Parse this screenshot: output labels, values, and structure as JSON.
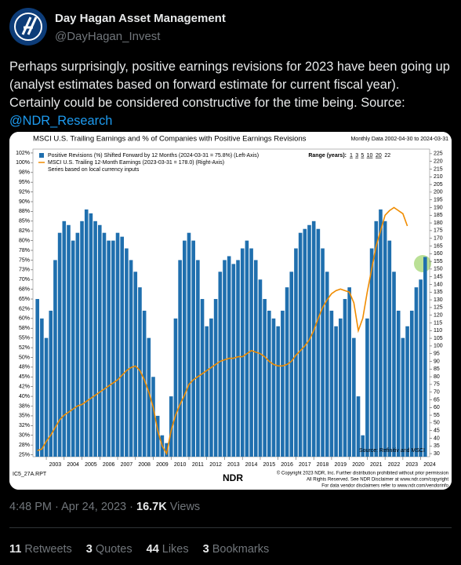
{
  "tweet": {
    "author_name": "Day Hagan Asset Management",
    "handle": "@DayHagan_Invest",
    "text": "Perhaps surprisingly, positive earnings revisions for 2023 have been going up (analyst estimates based on forward estimate for current fiscal year). Certainly could be considered constructive for the time being. Source:",
    "link": "@NDR_Research",
    "timestamp": "4:48 PM · Apr 24, 2023 · ",
    "views": "16.7K",
    "views_label": "Views",
    "stats": [
      {
        "count": 11,
        "label": "Retweets"
      },
      {
        "count": 3,
        "label": "Quotes"
      },
      {
        "count": 44,
        "label": "Likes"
      },
      {
        "count": 3,
        "label": "Bookmarks"
      }
    ]
  },
  "chart_data": {
    "type": "bar-line",
    "title": "MSCI U.S. Trailing Earnings and % of Companies with Positive Earnings Revisions",
    "subtitle": "Monthly Data 2002-04-30 to 2024-03-31",
    "range_label": "Range (years):",
    "range_options": [
      1,
      3,
      5,
      10,
      20,
      22
    ],
    "note": "Series based on local currency inputs",
    "source": "Source: Refinitiv and MSCI",
    "report_id": "IC5_27A.RPT",
    "logo": "NDR",
    "copyright": [
      "© Copyright 2023 NDR, Inc. Further distribution prohibited without prior permission",
      "All Rights Reserved. See NDR Disclaimer at www.ndr.com/copyright",
      "For data vendor disclaimers refer to www.ndr.com/vendorinfo"
    ],
    "x": [
      2002.5,
      2002.75,
      2003,
      2003.25,
      2003.5,
      2003.75,
      2004,
      2004.25,
      2004.5,
      2004.75,
      2005,
      2005.25,
      2005.5,
      2005.75,
      2006,
      2006.25,
      2006.5,
      2006.75,
      2007,
      2007.25,
      2007.5,
      2007.75,
      2008,
      2008.25,
      2008.5,
      2008.75,
      2009,
      2009.25,
      2009.5,
      2009.75,
      2010,
      2010.25,
      2010.5,
      2010.75,
      2011,
      2011.25,
      2011.5,
      2011.75,
      2012,
      2012.25,
      2012.5,
      2012.75,
      2013,
      2013.25,
      2013.5,
      2013.75,
      2014,
      2014.25,
      2014.5,
      2014.75,
      2015,
      2015.25,
      2015.5,
      2015.75,
      2016,
      2016.25,
      2016.5,
      2016.75,
      2017,
      2017.25,
      2017.5,
      2017.75,
      2018,
      2018.25,
      2018.5,
      2018.75,
      2019,
      2019.25,
      2019.5,
      2019.75,
      2020,
      2020.25,
      2020.5,
      2020.75,
      2021,
      2021.25,
      2021.5,
      2021.75,
      2022,
      2022.25,
      2022.5,
      2022.75,
      2023,
      2023.25,
      2023.5,
      2023.75,
      2024,
      2024.25
    ],
    "xlim": [
      2002.25,
      2024.5
    ],
    "xticks": [
      2003,
      2004,
      2005,
      2006,
      2007,
      2008,
      2009,
      2010,
      2011,
      2012,
      2013,
      2014,
      2015,
      2016,
      2017,
      2018,
      2019,
      2020,
      2021,
      2022,
      2023,
      2024
    ],
    "series": [
      {
        "name": "Positive Revisions (%) Shifted Forward by 12 Months (2024-03-31 = 75.8%) (Left-Axis)",
        "color": "#1f6fae",
        "type": "bar",
        "values": [
          65,
          60,
          55,
          62,
          75,
          82,
          85,
          84,
          80,
          82,
          85,
          88,
          87,
          85,
          84,
          82,
          80,
          80,
          82,
          81,
          78,
          75,
          72,
          68,
          62,
          55,
          45,
          35,
          30,
          28,
          40,
          60,
          75,
          80,
          82,
          80,
          75,
          65,
          58,
          60,
          65,
          72,
          75,
          76,
          74,
          75,
          78,
          80,
          78,
          75,
          70,
          65,
          62,
          60,
          58,
          62,
          68,
          72,
          78,
          82,
          83,
          84,
          85,
          83,
          78,
          72,
          62,
          58,
          60,
          65,
          68,
          55,
          40,
          30,
          60,
          78,
          85,
          88,
          85,
          80,
          72,
          62,
          55,
          58,
          62,
          68,
          70,
          75.8
        ]
      },
      {
        "name": "MSCI U.S. Trailing 12-Month Earnings (2023-03-31 = 178.0) (Right-Axis)",
        "color": "#f08c00",
        "type": "line",
        "axis": "y2",
        "values": [
          32,
          33,
          38,
          42,
          47,
          52,
          55,
          57,
          59,
          61,
          62,
          64,
          66,
          68,
          70,
          72,
          74,
          76,
          78,
          81,
          84,
          86,
          87,
          84,
          78,
          70,
          60,
          45,
          35,
          30,
          45,
          55,
          62,
          68,
          75,
          78,
          80,
          82,
          84,
          86,
          88,
          90,
          91,
          92,
          92,
          93,
          93,
          95,
          97,
          96,
          95,
          93,
          90,
          88,
          87,
          87,
          88,
          90,
          94,
          97,
          100,
          104,
          110,
          118,
          125,
          130,
          134,
          136,
          137,
          136,
          135,
          128,
          110,
          118,
          135,
          150,
          165,
          175,
          185,
          188,
          190,
          188,
          186,
          178,
          null,
          null,
          null,
          null
        ]
      }
    ],
    "ylim": [
      24.5,
      103.5
    ],
    "yticks": [
      {
        "value": 25,
        "label": "25%"
      },
      {
        "value": 27.5,
        "label": "28%"
      },
      {
        "value": 30,
        "label": "30%"
      },
      {
        "value": 32.5,
        "label": "32%"
      },
      {
        "value": 35,
        "label": "35%"
      },
      {
        "value": 37.5,
        "label": "38%"
      },
      {
        "value": 40,
        "label": "40%"
      },
      {
        "value": 42.5,
        "label": "42%"
      },
      {
        "value": 45,
        "label": "45%"
      },
      {
        "value": 47.5,
        "label": "48%"
      },
      {
        "value": 50,
        "label": "50%"
      },
      {
        "value": 52.5,
        "label": "52%"
      },
      {
        "value": 55,
        "label": "55%"
      },
      {
        "value": 57.5,
        "label": "58%"
      },
      {
        "value": 60,
        "label": "60%"
      },
      {
        "value": 62.5,
        "label": "62%"
      },
      {
        "value": 65,
        "label": "65%"
      },
      {
        "value": 67.5,
        "label": "68%"
      },
      {
        "value": 70,
        "label": "70%"
      },
      {
        "value": 72.5,
        "label": "73%"
      },
      {
        "value": 75,
        "label": "75%"
      },
      {
        "value": 77.5,
        "label": "78%"
      },
      {
        "value": 80,
        "label": "80%"
      },
      {
        "value": 82.5,
        "label": "82%"
      },
      {
        "value": 85,
        "label": "85%"
      },
      {
        "value": 87.5,
        "label": "88%"
      },
      {
        "value": 90,
        "label": "90%"
      },
      {
        "value": 92.5,
        "label": "92%"
      },
      {
        "value": 95,
        "label": "95%"
      },
      {
        "value": 97.5,
        "label": "98%"
      },
      {
        "value": 100,
        "label": "100%"
      },
      {
        "value": 102.5,
        "label": "102%"
      }
    ],
    "y2lim": [
      28,
      228
    ],
    "y2ticks": [
      30,
      35,
      40,
      45,
      50,
      55,
      60,
      65,
      70,
      75,
      80,
      85,
      90,
      95,
      100,
      105,
      110,
      115,
      120,
      125,
      130,
      135,
      140,
      145,
      150,
      155,
      160,
      165,
      170,
      175,
      180,
      185,
      190,
      195,
      200,
      205,
      210,
      215,
      220,
      225
    ],
    "grid": false
  }
}
